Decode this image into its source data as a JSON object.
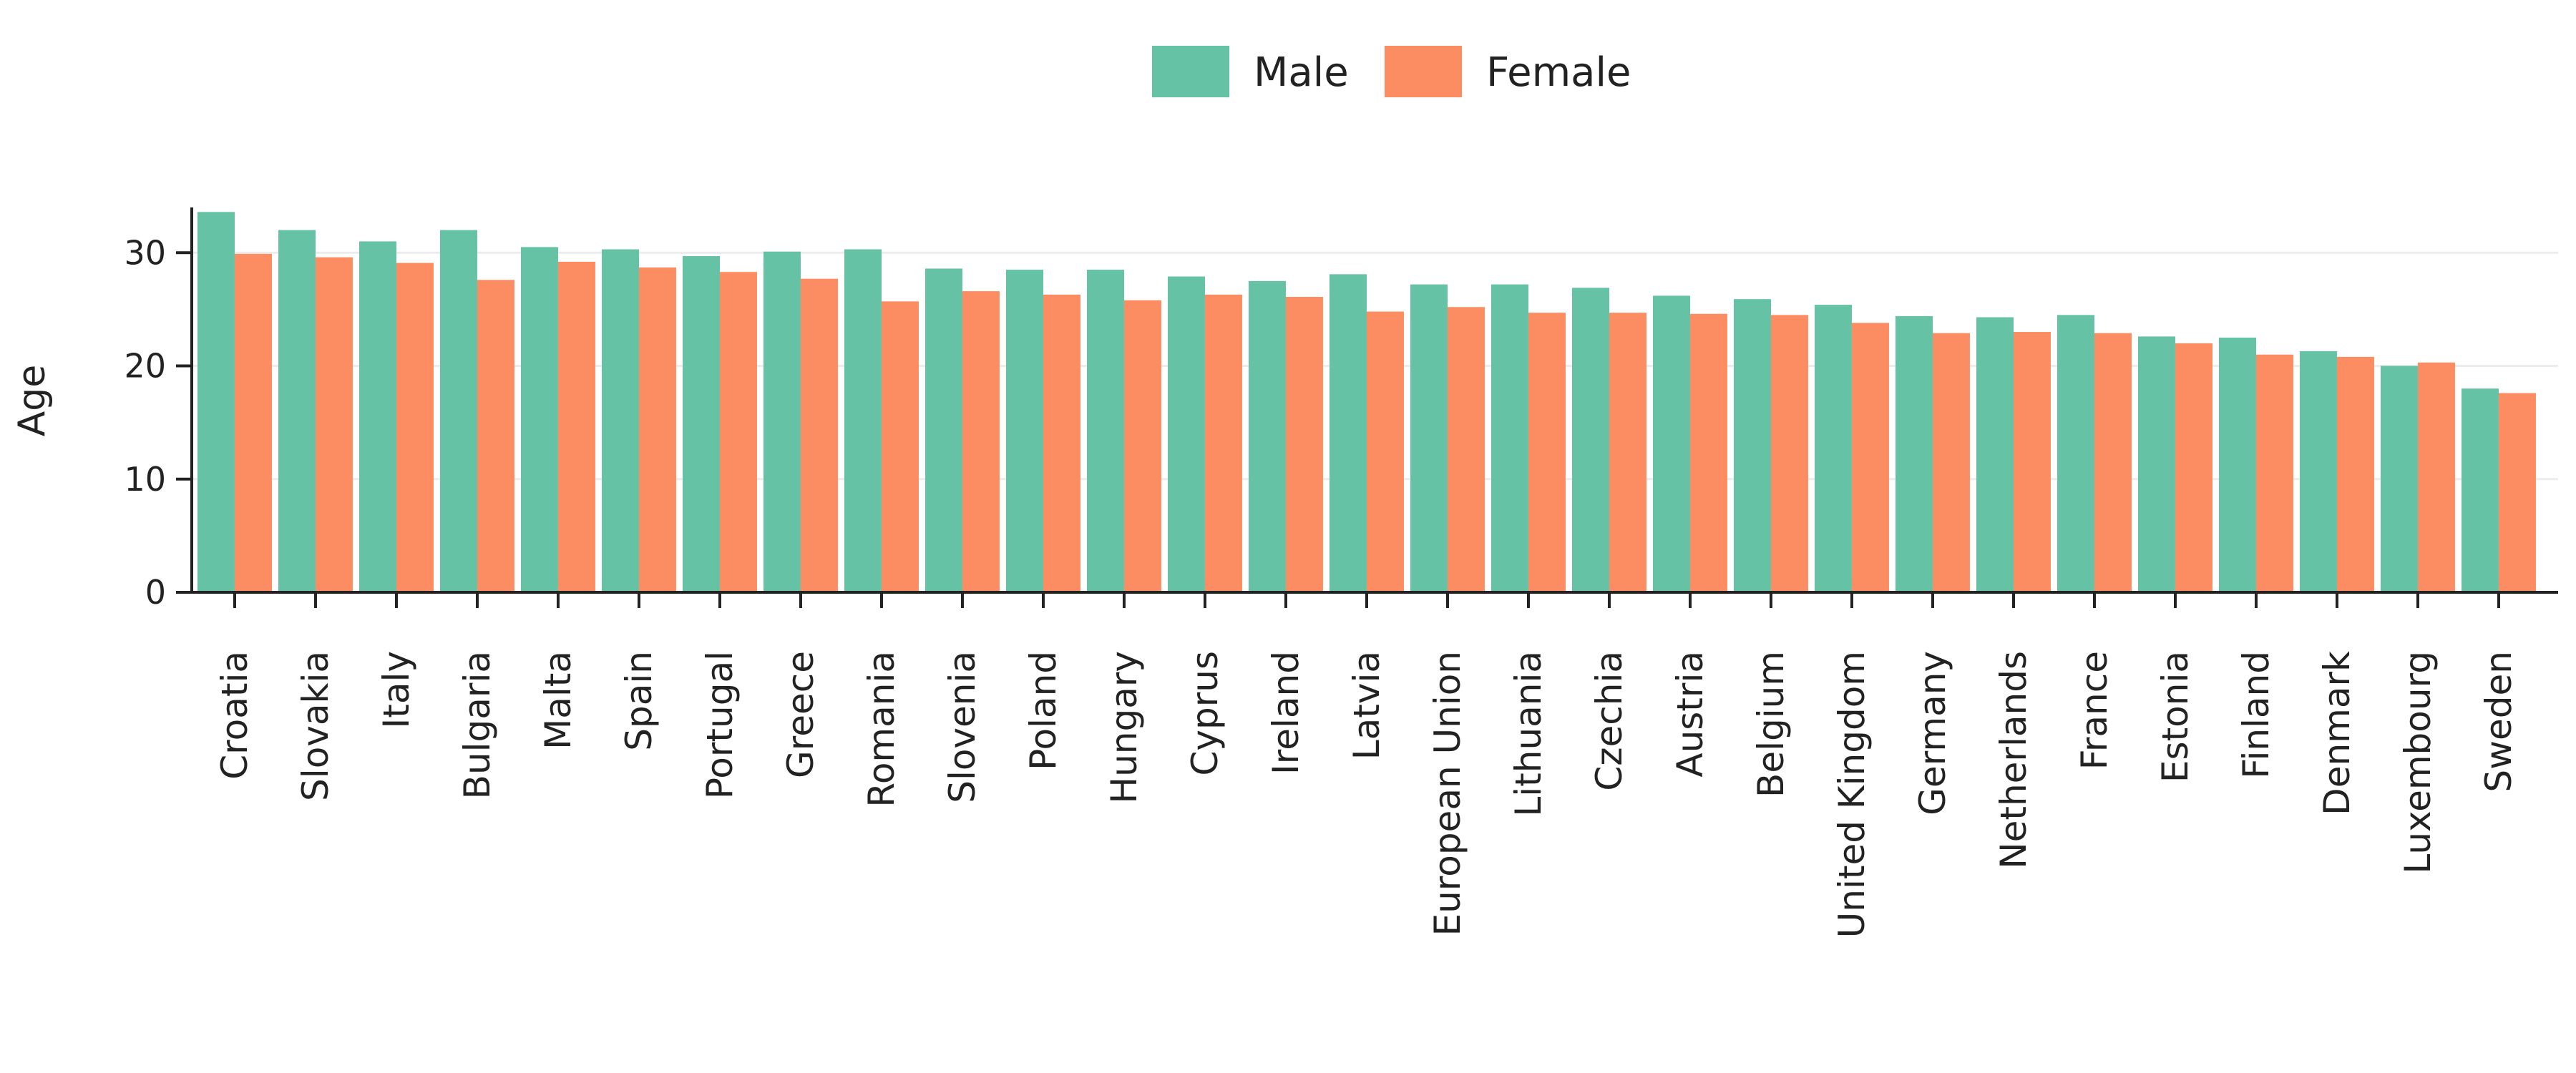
{
  "chart_data": {
    "type": "bar",
    "title": "",
    "xlabel": "",
    "ylabel": "Age",
    "ylim": [
      0,
      34
    ],
    "yticks": [
      0,
      10,
      20,
      30
    ],
    "grid": "horizontal",
    "legend_position": "top-center",
    "categories": [
      "Croatia",
      "Slovakia",
      "Italy",
      "Bulgaria",
      "Malta",
      "Spain",
      "Portugal",
      "Greece",
      "Romania",
      "Slovenia",
      "Poland",
      "Hungary",
      "Cyprus",
      "Ireland",
      "Latvia",
      "European Union",
      "Lithuania",
      "Czechia",
      "Austria",
      "Belgium",
      "United Kingdom",
      "Germany",
      "Netherlands",
      "France",
      "Estonia",
      "Finland",
      "Denmark",
      "Luxembourg",
      "Sweden"
    ],
    "series": [
      {
        "name": "Male",
        "color": "#66c2a5",
        "values": [
          33.6,
          32.0,
          31.0,
          32.0,
          30.5,
          30.3,
          29.7,
          30.1,
          30.3,
          28.6,
          28.5,
          28.5,
          27.9,
          27.5,
          28.1,
          27.2,
          27.2,
          26.9,
          26.2,
          25.9,
          25.4,
          24.4,
          24.3,
          24.5,
          22.6,
          22.5,
          21.3,
          20.0,
          18.0
        ]
      },
      {
        "name": "Female",
        "color": "#fc8d62",
        "values": [
          29.9,
          29.6,
          29.1,
          27.6,
          29.2,
          28.7,
          28.3,
          27.7,
          25.7,
          26.6,
          26.3,
          25.8,
          26.3,
          26.1,
          24.8,
          25.2,
          24.7,
          24.7,
          24.6,
          24.5,
          23.8,
          22.9,
          23.0,
          22.9,
          22.0,
          21.0,
          20.8,
          20.3,
          17.6
        ]
      }
    ]
  }
}
